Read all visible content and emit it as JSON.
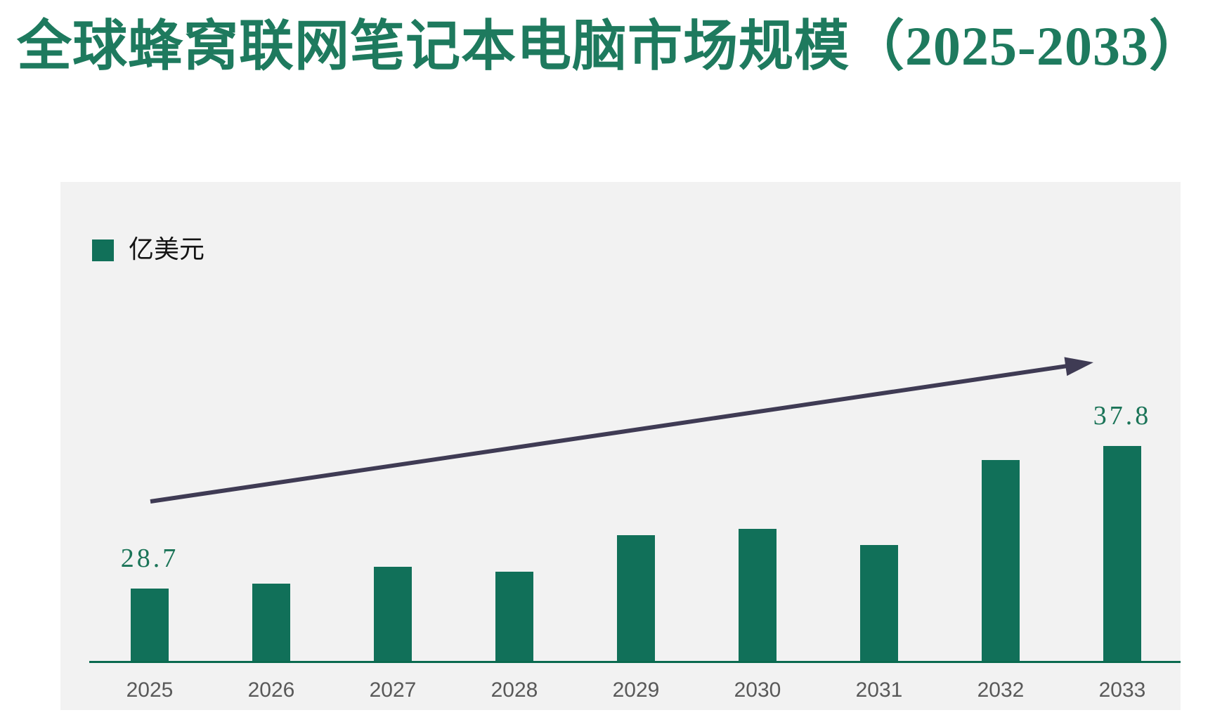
{
  "title": {
    "text": "全球蜂窝联网笔记本电脑市场规模（2025-2033）"
  },
  "legend": {
    "label": "亿美元"
  },
  "chart_data": {
    "type": "bar",
    "title": "全球蜂窝联网笔记本电脑市场规模（2025-2033）",
    "unit": "亿美元",
    "legend_entries": [
      "亿美元"
    ],
    "legend_position": "top-left",
    "categories": [
      "2025",
      "2026",
      "2027",
      "2028",
      "2029",
      "2030",
      "2031",
      "2032",
      "2033"
    ],
    "series": [
      {
        "name": "亿美元",
        "values": [
          28.7,
          29.0,
          30.1,
          29.8,
          32.1,
          32.5,
          31.5,
          36.9,
          37.8
        ]
      }
    ],
    "data_labels": [
      {
        "category": "2025",
        "text": "28.7"
      },
      {
        "category": "2033",
        "text": "37.8"
      }
    ],
    "ylim": [
      24,
      38.5
    ],
    "y_axis_visible": false,
    "grid": false,
    "trend_arrow": true
  },
  "colors": {
    "page_bg": "#ffffff",
    "panel_bg": "#f2f2f2",
    "title": "#1e7a5e",
    "bar": "#117059",
    "axis_line": "#0a6a4f",
    "data_label": "#1b7458",
    "x_tick": "#595959",
    "legend_text": "#141414",
    "arrow": "#3f3b54"
  }
}
